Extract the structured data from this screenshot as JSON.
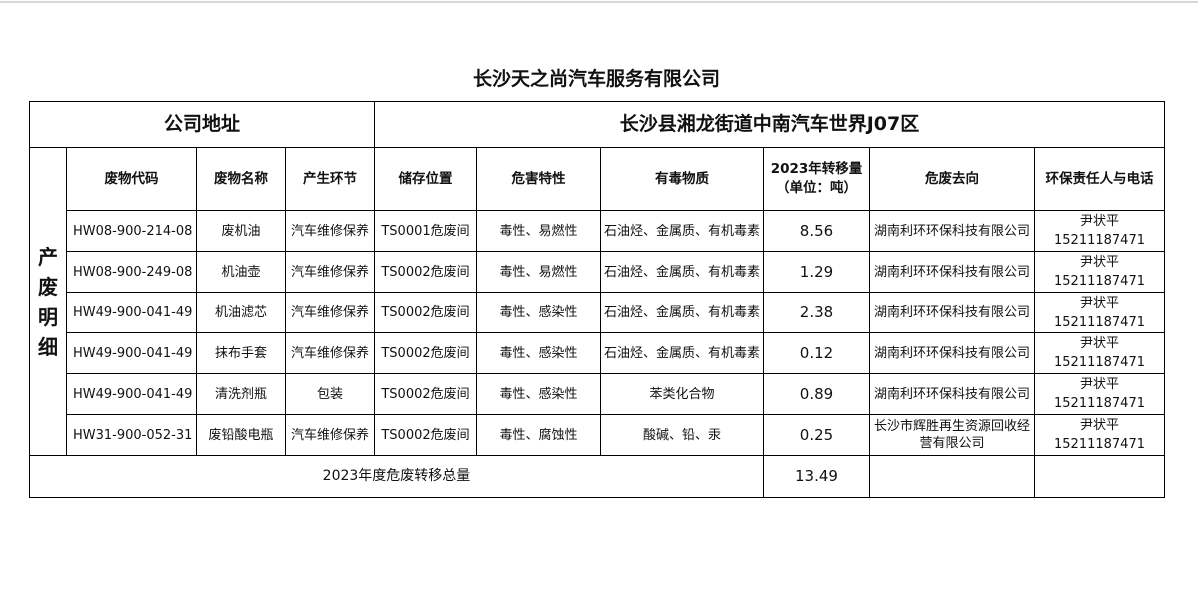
{
  "title": "长沙天之尚汽车服务有限公司",
  "address_label": "公司地址",
  "address_value": "长沙县湘龙街道中南汽车世界J07区",
  "side_label": [
    "产",
    "废",
    "明",
    "细"
  ],
  "columns": [
    "废物代码",
    "废物名称",
    "产生环节",
    "储存位置",
    "危害特性",
    "有毒物质",
    "2023年转移量",
    "（单位：吨）",
    "危废去向",
    "环保责任人与电话"
  ],
  "rows": [
    {
      "code": "HW08-900-214-08",
      "name": "废机油",
      "stage": "汽车维修保养",
      "storage": "TS0001危废间",
      "hazard": "毒性、易燃性",
      "toxic": "石油烃、金属质、有机毒素",
      "amount": "8.56",
      "dest": "湖南利环环保科技有限公司",
      "person": "尹状平",
      "phone": "15211187471"
    },
    {
      "code": "HW08-900-249-08",
      "name": "机油壶",
      "stage": "汽车维修保养",
      "storage": "TS0002危废间",
      "hazard": "毒性、易燃性",
      "toxic": "石油烃、金属质、有机毒素",
      "amount": "1.29",
      "dest": "湖南利环环保科技有限公司",
      "person": "尹状平",
      "phone": "15211187471"
    },
    {
      "code": "HW49-900-041-49",
      "name": "机油滤芯",
      "stage": "汽车维修保养",
      "storage": "TS0002危废间",
      "hazard": "毒性、感染性",
      "toxic": "石油烃、金属质、有机毒素",
      "amount": "2.38",
      "dest": "湖南利环环保科技有限公司",
      "person": "尹状平",
      "phone": "15211187471"
    },
    {
      "code": "HW49-900-041-49",
      "name": "抹布手套",
      "stage": "汽车维修保养",
      "storage": "TS0002危废间",
      "hazard": "毒性、感染性",
      "toxic": "石油烃、金属质、有机毒素",
      "amount": "0.12",
      "dest": "湖南利环环保科技有限公司",
      "person": "尹状平",
      "phone": "15211187471"
    },
    {
      "code": "HW49-900-041-49",
      "name": "清洗剂瓶",
      "stage": "包装",
      "storage": "TS0002危废间",
      "hazard": "毒性、感染性",
      "toxic": "苯类化合物",
      "amount": "0.89",
      "dest": "湖南利环环保科技有限公司",
      "person": "尹状平",
      "phone": "15211187471"
    },
    {
      "code": "HW31-900-052-31",
      "name": "废铅酸电瓶",
      "stage": "汽车维修保养",
      "storage": "TS0002危废间",
      "hazard": "毒性、腐蚀性",
      "toxic": "酸碱、铅、汞",
      "amount": "0.25",
      "dest": "长沙市辉胜再生资源回收经营有限公司",
      "person": "尹状平",
      "phone": "15211187471"
    }
  ],
  "total_label": "2023年度危废转移总量",
  "total_value": "13.49"
}
